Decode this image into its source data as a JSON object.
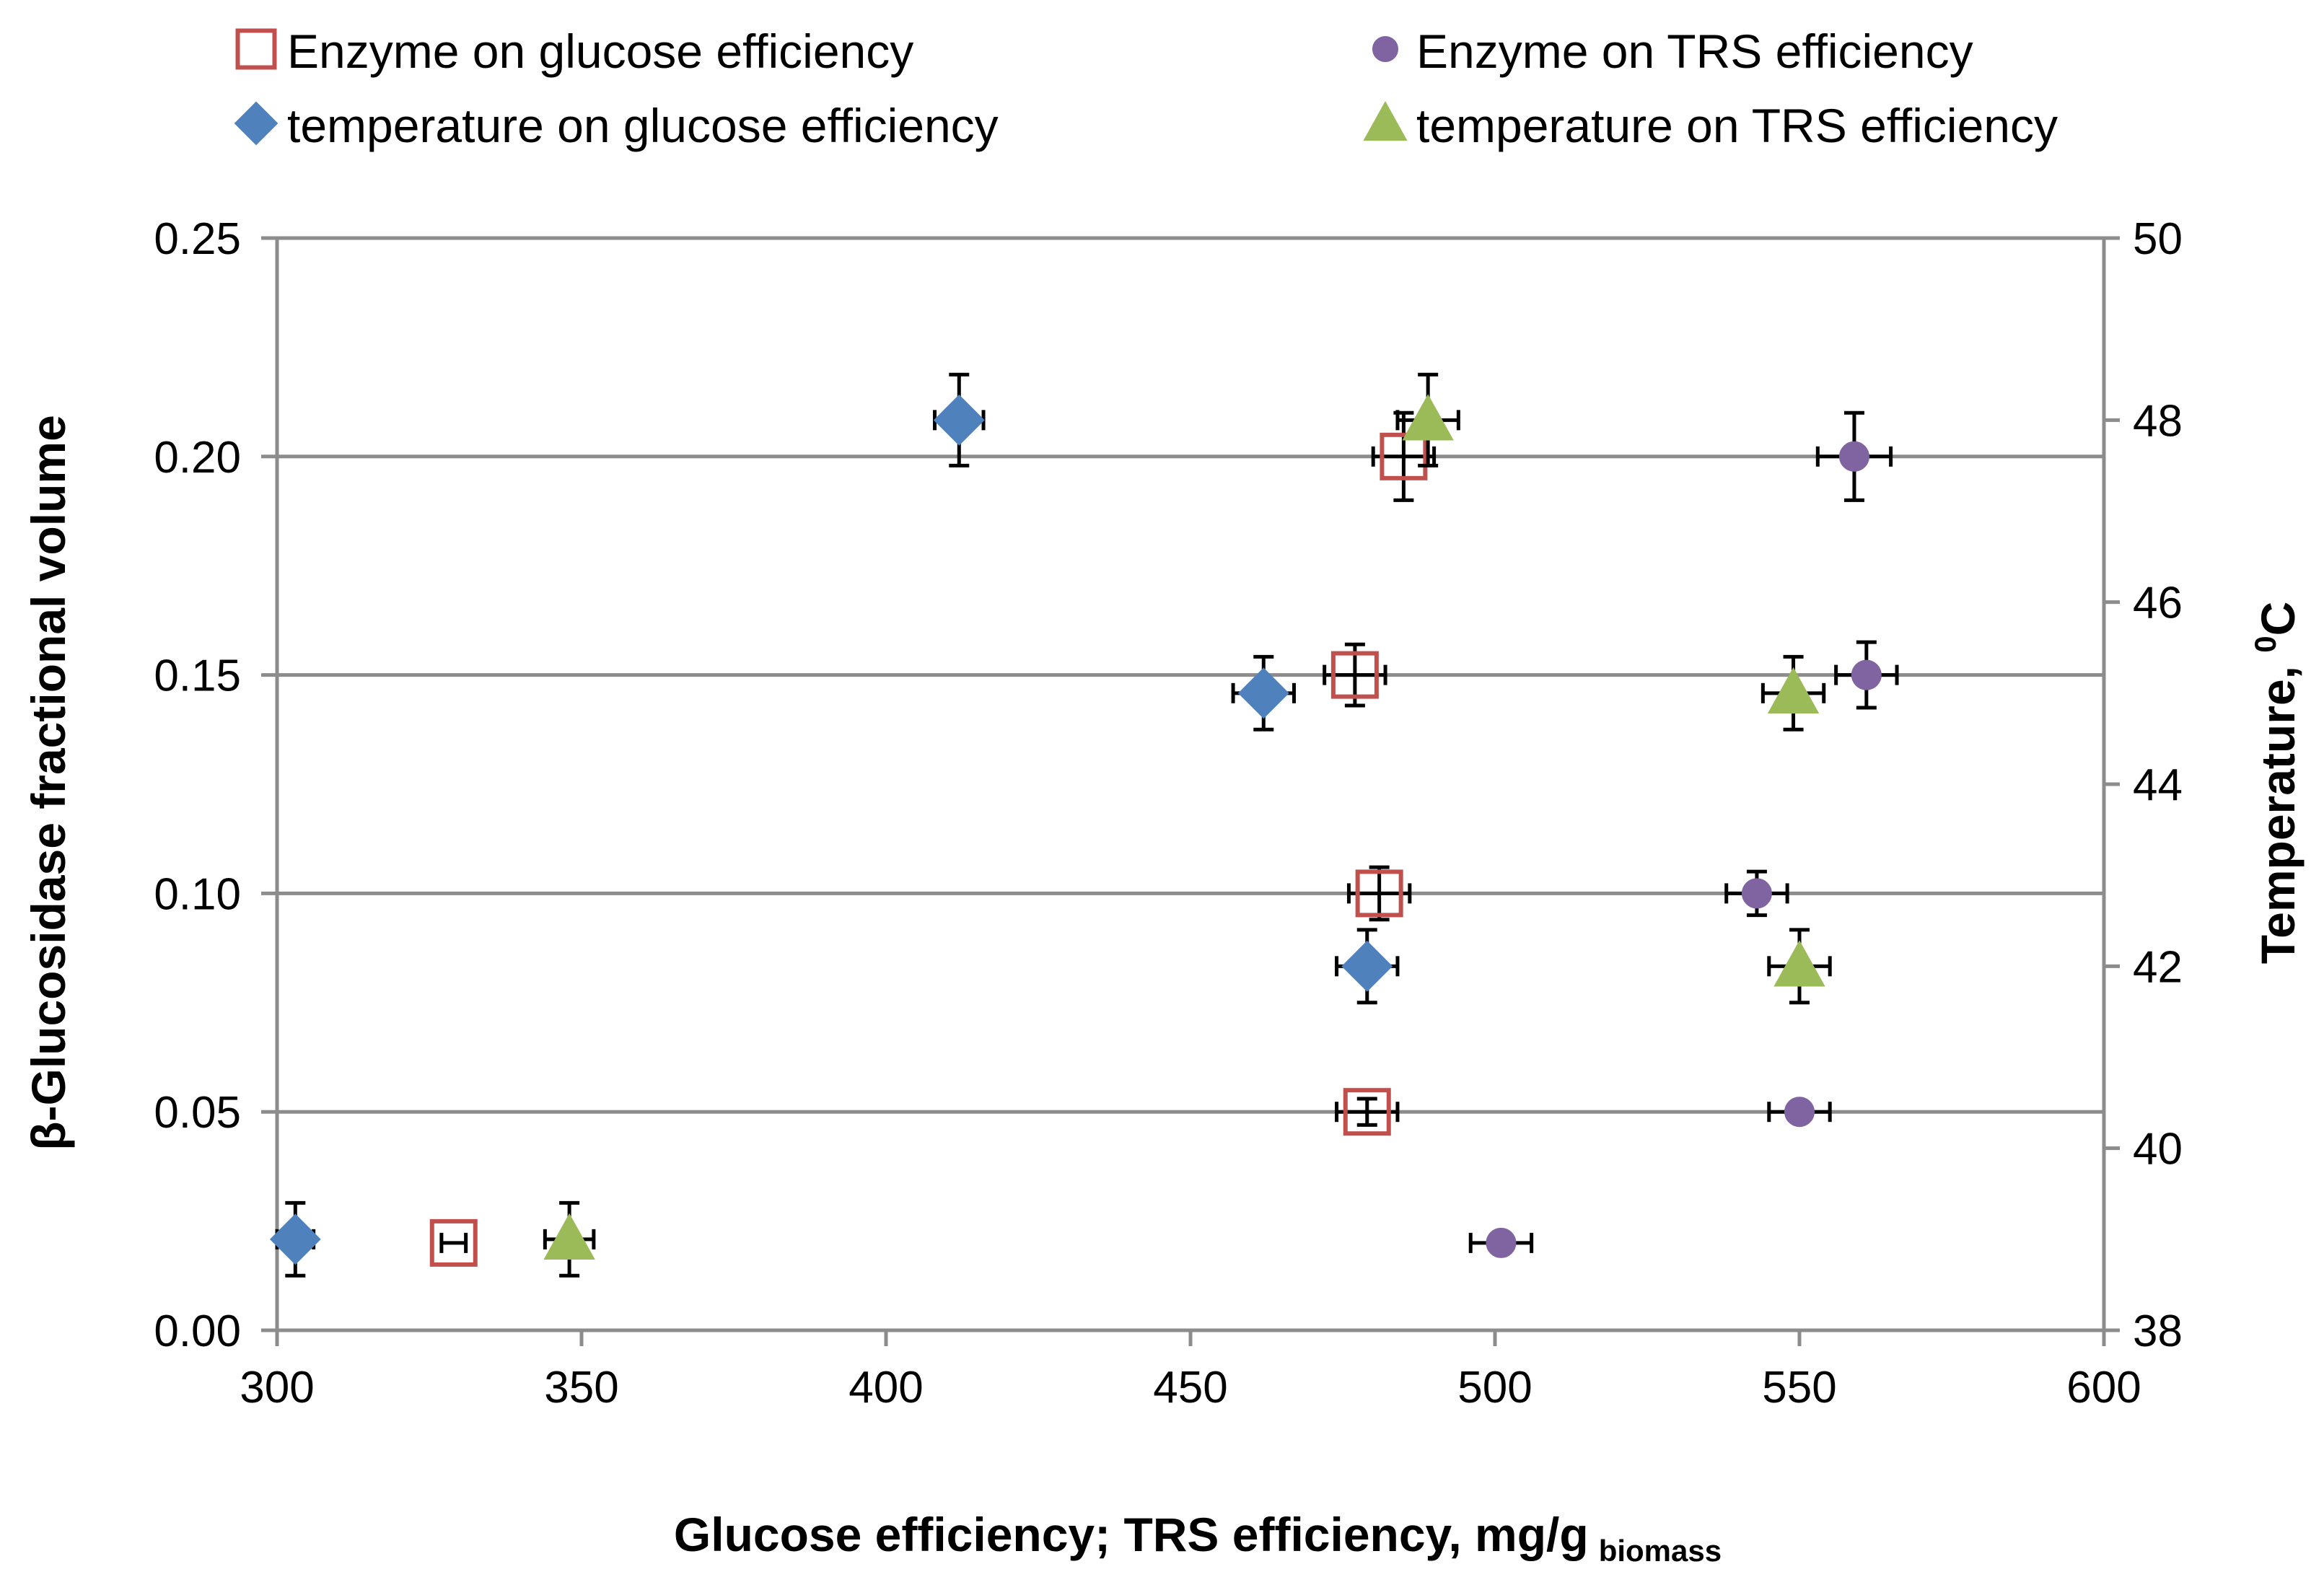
{
  "chart_data": {
    "type": "scatter",
    "title": "",
    "xlabel": "Glucose efficiency; TRS efficiency, mg/g",
    "xlabel_subscript": "biomass",
    "ylabel": "β-Glucosidase fractional volume",
    "y2label": "Temperature, ",
    "y2label_sup": "0",
    "y2label_end": "C",
    "xlim": [
      300,
      600
    ],
    "xticks": [
      300,
      350,
      400,
      450,
      500,
      550,
      600
    ],
    "ylim": [
      0,
      0.25
    ],
    "yticks": [
      "0.00",
      "0.05",
      "0.10",
      "0.15",
      "0.20",
      "0.25"
    ],
    "y2lim": [
      38,
      50
    ],
    "y2ticks": [
      "38",
      "40",
      "42",
      "44",
      "46",
      "48",
      "50"
    ],
    "grid": "horizontal",
    "legend_position": "top",
    "series": [
      {
        "name": "Enzyme on glucose efficiency",
        "marker": "open-square",
        "color": "#c0504d",
        "axis": "left",
        "points": [
          {
            "x": 329,
            "y": 0.02,
            "xerr": 2,
            "yerr": 0
          },
          {
            "x": 479,
            "y": 0.05,
            "xerr": 5,
            "yerr": 0.003
          },
          {
            "x": 481,
            "y": 0.1,
            "xerr": 5,
            "yerr": 0.006
          },
          {
            "x": 477,
            "y": 0.15,
            "xerr": 5,
            "yerr": 0.007
          },
          {
            "x": 485,
            "y": 0.2,
            "xerr": 5,
            "yerr": 0.01
          }
        ]
      },
      {
        "name": "Enzyme on TRS efficiency",
        "marker": "circle",
        "color": "#8064a2",
        "axis": "left",
        "points": [
          {
            "x": 501,
            "y": 0.02,
            "xerr": 5,
            "yerr": 0
          },
          {
            "x": 550,
            "y": 0.05,
            "xerr": 5,
            "yerr": 0
          },
          {
            "x": 543,
            "y": 0.1,
            "xerr": 5,
            "yerr": 0.005
          },
          {
            "x": 561,
            "y": 0.15,
            "xerr": 5,
            "yerr": 0.0075
          },
          {
            "x": 559,
            "y": 0.2,
            "xerr": 6,
            "yerr": 0.01
          }
        ]
      },
      {
        "name": "temperature on glucose efficiency",
        "marker": "diamond",
        "color": "#4f81bd",
        "axis": "right",
        "points": [
          {
            "x": 303,
            "y": 39,
            "xerr": 3,
            "yerr": 0.4
          },
          {
            "x": 479,
            "y": 42,
            "xerr": 5,
            "yerr": 0.4
          },
          {
            "x": 462,
            "y": 45,
            "xerr": 5,
            "yerr": 0.4
          },
          {
            "x": 412,
            "y": 48,
            "xerr": 4,
            "yerr": 0.5
          }
        ]
      },
      {
        "name": "temperature on TRS efficiency",
        "marker": "triangle",
        "color": "#9bbb59",
        "axis": "right",
        "points": [
          {
            "x": 348,
            "y": 39,
            "xerr": 4,
            "yerr": 0.4
          },
          {
            "x": 550,
            "y": 42,
            "xerr": 5,
            "yerr": 0.4
          },
          {
            "x": 549,
            "y": 45,
            "xerr": 5,
            "yerr": 0.4
          },
          {
            "x": 489,
            "y": 48,
            "xerr": 5,
            "yerr": 0.5
          }
        ]
      }
    ]
  }
}
